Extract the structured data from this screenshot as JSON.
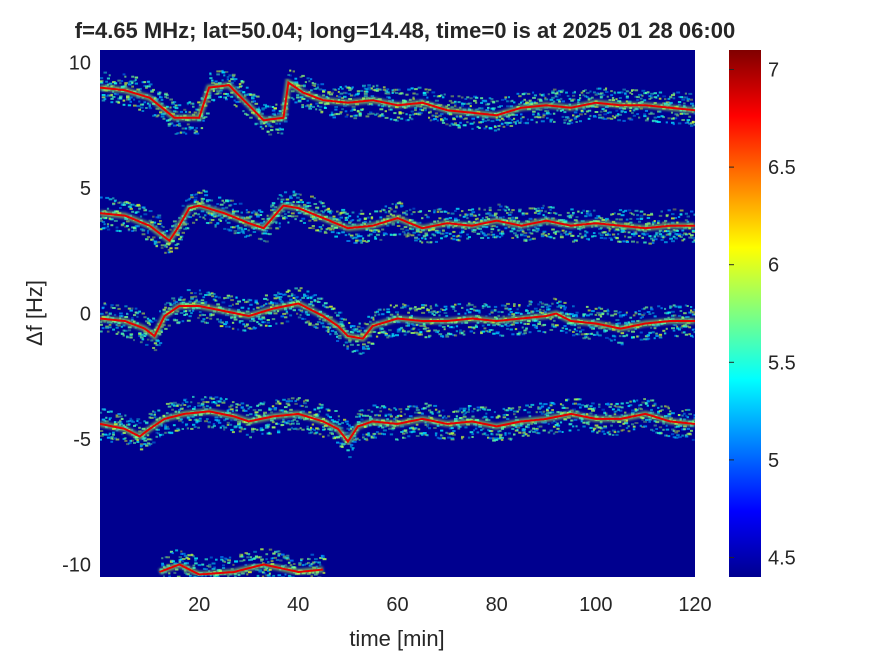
{
  "chart_data": {
    "type": "heatmap",
    "title": "f=4.65 MHz;  lat=50.04; long=14.48, time=0 is at 2025 01 28 06:00",
    "xlabel": "time [min]",
    "ylabel": "Δf [Hz]",
    "xlim": [
      0,
      120
    ],
    "ylim": [
      -10.5,
      10.5
    ],
    "x_ticks": [
      20,
      40,
      60,
      80,
      100,
      120
    ],
    "y_ticks": [
      10,
      5,
      0,
      -5,
      -10
    ],
    "colorbar": {
      "colormap": "jet",
      "range": [
        4.4,
        7.1
      ],
      "ticks": [
        4.5,
        5,
        5.5,
        6,
        6.5,
        7
      ]
    },
    "grid": false,
    "background_value": 4.5,
    "traces": [
      {
        "offset_hz": 9,
        "points": [
          [
            0,
            9.0
          ],
          [
            5,
            8.9
          ],
          [
            10,
            8.6
          ],
          [
            15,
            7.8
          ],
          [
            20,
            7.8
          ],
          [
            22,
            9.0
          ],
          [
            26,
            9.1
          ],
          [
            30,
            8.3
          ],
          [
            33,
            7.7
          ],
          [
            37,
            7.8
          ],
          [
            38,
            9.2
          ],
          [
            41,
            8.8
          ],
          [
            45,
            8.5
          ],
          [
            50,
            8.4
          ],
          [
            55,
            8.5
          ],
          [
            60,
            8.3
          ],
          [
            65,
            8.4
          ],
          [
            70,
            8.1
          ],
          [
            75,
            8.0
          ],
          [
            80,
            7.9
          ],
          [
            85,
            8.2
          ],
          [
            90,
            8.3
          ],
          [
            95,
            8.2
          ],
          [
            100,
            8.4
          ],
          [
            105,
            8.3
          ],
          [
            110,
            8.3
          ],
          [
            115,
            8.2
          ],
          [
            120,
            8.1
          ]
        ]
      },
      {
        "offset_hz": 4,
        "points": [
          [
            0,
            4.0
          ],
          [
            5,
            3.9
          ],
          [
            10,
            3.5
          ],
          [
            14,
            2.9
          ],
          [
            16,
            3.5
          ],
          [
            18,
            4.2
          ],
          [
            20,
            4.3
          ],
          [
            25,
            4.0
          ],
          [
            30,
            3.6
          ],
          [
            33,
            3.4
          ],
          [
            37,
            4.3
          ],
          [
            40,
            4.2
          ],
          [
            45,
            3.8
          ],
          [
            50,
            3.4
          ],
          [
            55,
            3.5
          ],
          [
            60,
            3.8
          ],
          [
            65,
            3.4
          ],
          [
            70,
            3.6
          ],
          [
            75,
            3.5
          ],
          [
            80,
            3.7
          ],
          [
            85,
            3.5
          ],
          [
            90,
            3.7
          ],
          [
            95,
            3.5
          ],
          [
            100,
            3.6
          ],
          [
            105,
            3.5
          ],
          [
            110,
            3.4
          ],
          [
            115,
            3.5
          ],
          [
            120,
            3.5
          ]
        ]
      },
      {
        "offset_hz": 0,
        "points": [
          [
            0,
            -0.2
          ],
          [
            5,
            -0.3
          ],
          [
            9,
            -0.6
          ],
          [
            11,
            -0.9
          ],
          [
            13,
            -0.1
          ],
          [
            16,
            0.3
          ],
          [
            20,
            0.3
          ],
          [
            25,
            0.1
          ],
          [
            30,
            -0.1
          ],
          [
            35,
            0.2
          ],
          [
            40,
            0.4
          ],
          [
            45,
            -0.1
          ],
          [
            48,
            -0.5
          ],
          [
            50,
            -0.9
          ],
          [
            53,
            -1.0
          ],
          [
            55,
            -0.5
          ],
          [
            60,
            -0.2
          ],
          [
            65,
            -0.3
          ],
          [
            70,
            -0.3
          ],
          [
            75,
            -0.2
          ],
          [
            80,
            -0.3
          ],
          [
            85,
            -0.2
          ],
          [
            90,
            -0.1
          ],
          [
            92,
            0.0
          ],
          [
            95,
            -0.3
          ],
          [
            100,
            -0.4
          ],
          [
            105,
            -0.6
          ],
          [
            110,
            -0.4
          ],
          [
            115,
            -0.3
          ],
          [
            120,
            -0.3
          ]
        ]
      },
      {
        "offset_hz": -4.5,
        "points": [
          [
            0,
            -4.4
          ],
          [
            5,
            -4.6
          ],
          [
            8,
            -4.9
          ],
          [
            10,
            -4.6
          ],
          [
            13,
            -4.2
          ],
          [
            17,
            -4.0
          ],
          [
            22,
            -3.9
          ],
          [
            27,
            -4.1
          ],
          [
            30,
            -4.3
          ],
          [
            35,
            -4.1
          ],
          [
            40,
            -4.0
          ],
          [
            45,
            -4.3
          ],
          [
            48,
            -4.6
          ],
          [
            50,
            -5.1
          ],
          [
            52,
            -4.5
          ],
          [
            55,
            -4.3
          ],
          [
            60,
            -4.4
          ],
          [
            65,
            -4.2
          ],
          [
            70,
            -4.4
          ],
          [
            75,
            -4.3
          ],
          [
            80,
            -4.5
          ],
          [
            85,
            -4.3
          ],
          [
            90,
            -4.2
          ],
          [
            95,
            -4.0
          ],
          [
            100,
            -4.2
          ],
          [
            105,
            -4.2
          ],
          [
            110,
            -4.0
          ],
          [
            115,
            -4.3
          ],
          [
            120,
            -4.4
          ]
        ]
      },
      {
        "offset_hz": -10,
        "points": [
          [
            12,
            -10.3
          ],
          [
            16,
            -10.0
          ],
          [
            20,
            -10.4
          ],
          [
            27,
            -10.3
          ],
          [
            33,
            -10.0
          ],
          [
            40,
            -10.3
          ],
          [
            45,
            -10.2
          ]
        ]
      }
    ]
  }
}
